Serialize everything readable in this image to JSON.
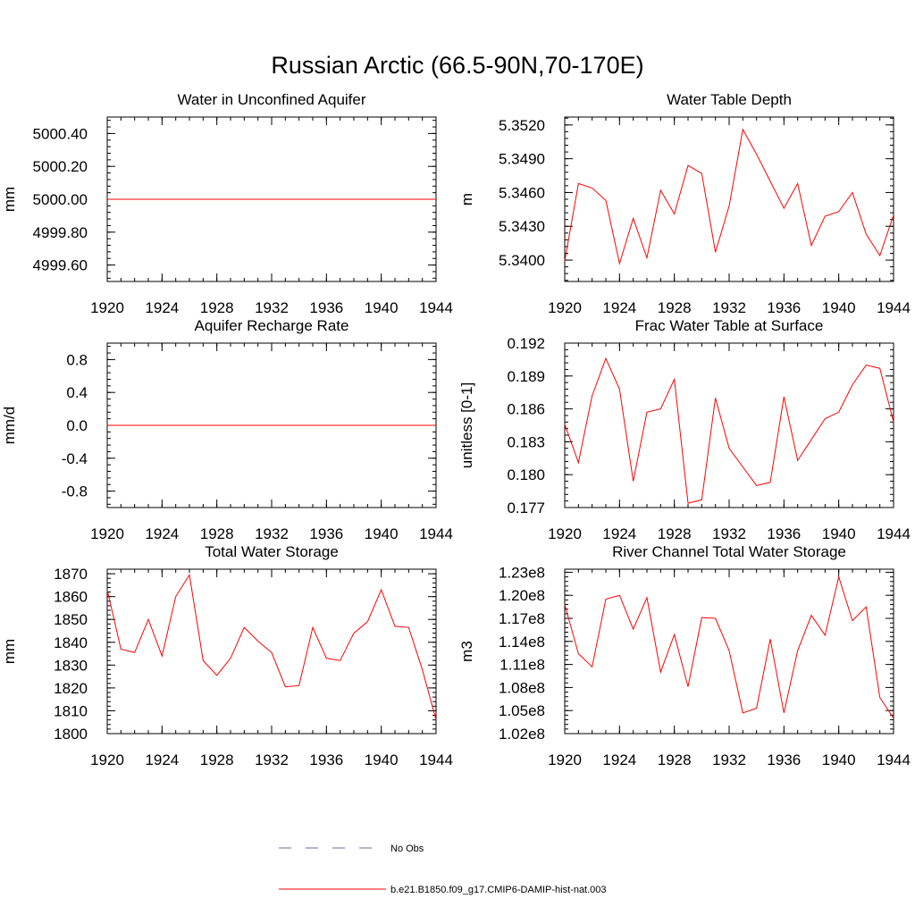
{
  "figure": {
    "title": "Russian Arctic (66.5-90N,70-170E)"
  },
  "legend": {
    "items": [
      {
        "label": "No Obs",
        "color": "#6a6aa0",
        "style": "dashed"
      },
      {
        "label": "b.e21.B1850.f09_g17.CMIP6-DAMIP-hist-nat.003",
        "color": "#ff0000",
        "style": "solid"
      }
    ]
  },
  "chart_data": [
    {
      "type": "line",
      "title": "Water in Unconfined Aquifer",
      "ylabel": "mm",
      "xlim": [
        1920,
        1944
      ],
      "ylim": [
        4999.5,
        5000.5
      ],
      "xticks": [
        "1920",
        "1924",
        "1928",
        "1932",
        "1936",
        "1940",
        "1944"
      ],
      "yticks": [
        4999.6,
        4999.8,
        5000.0,
        5000.2,
        5000.4
      ],
      "ytick_labels": [
        "4999.60",
        "4999.80",
        "5000.00",
        "5000.20",
        "5000.40"
      ],
      "yminor_step": 0.04,
      "series": [
        {
          "color": "#ff0000",
          "x": [
            1920,
            1921,
            1922,
            1923,
            1924,
            1925,
            1926,
            1927,
            1928,
            1929,
            1930,
            1931,
            1932,
            1933,
            1934,
            1935,
            1936,
            1937,
            1938,
            1939,
            1940,
            1941,
            1942,
            1943,
            1944
          ],
          "values": [
            5000,
            5000,
            5000,
            5000,
            5000,
            5000,
            5000,
            5000,
            5000,
            5000,
            5000,
            5000,
            5000,
            5000,
            5000,
            5000,
            5000,
            5000,
            5000,
            5000,
            5000,
            5000,
            5000,
            5000,
            5000
          ]
        }
      ]
    },
    {
      "type": "line",
      "title": "Water Table Depth",
      "ylabel": "m",
      "xlim": [
        1920,
        1944
      ],
      "ylim": [
        5.3381,
        5.3527
      ],
      "xticks": [
        "1920",
        "1924",
        "1928",
        "1932",
        "1936",
        "1940",
        "1944"
      ],
      "yticks": [
        5.34,
        5.343,
        5.346,
        5.349,
        5.352
      ],
      "ytick_labels": [
        "5.3400",
        "5.3430",
        "5.3460",
        "5.3490",
        "5.3520"
      ],
      "yminor_step": 0.0006,
      "series": [
        {
          "color": "#ff0000",
          "x": [
            1920,
            1921,
            1922,
            1923,
            1924,
            1925,
            1926,
            1927,
            1928,
            1929,
            1930,
            1931,
            1932,
            1933,
            1934,
            1935,
            1936,
            1937,
            1938,
            1939,
            1940,
            1941,
            1942,
            1943,
            1944
          ],
          "values": [
            5.3399,
            5.3468,
            5.3464,
            5.3453,
            5.3397,
            5.3437,
            5.3402,
            5.3462,
            5.3441,
            5.3484,
            5.3477,
            5.3407,
            5.3448,
            5.3516,
            5.3494,
            5.347,
            5.3446,
            5.3468,
            5.3413,
            5.3439,
            5.3443,
            5.346,
            5.3423,
            5.3404,
            5.344
          ]
        }
      ]
    },
    {
      "type": "line",
      "title": "Aquifer Recharge Rate",
      "ylabel": "mm/d",
      "xlim": [
        1920,
        1944
      ],
      "ylim": [
        -1.0,
        1.0
      ],
      "xticks": [
        "1920",
        "1924",
        "1928",
        "1932",
        "1936",
        "1940",
        "1944"
      ],
      "yticks": [
        -0.8,
        -0.4,
        0.0,
        0.4,
        0.8
      ],
      "ytick_labels": [
        "-0.8",
        "-0.4",
        "0.0",
        "0.4",
        "0.8"
      ],
      "yminor_step": 0.08,
      "series": [
        {
          "color": "#ff0000",
          "x": [
            1920,
            1921,
            1922,
            1923,
            1924,
            1925,
            1926,
            1927,
            1928,
            1929,
            1930,
            1931,
            1932,
            1933,
            1934,
            1935,
            1936,
            1937,
            1938,
            1939,
            1940,
            1941,
            1942,
            1943,
            1944
          ],
          "values": [
            0,
            0,
            0,
            0,
            0,
            0,
            0,
            0,
            0,
            0,
            0,
            0,
            0,
            0,
            0,
            0,
            0,
            0,
            0,
            0,
            0,
            0,
            0,
            0,
            0
          ]
        }
      ]
    },
    {
      "type": "line",
      "title": "Frac Water Table at Surface",
      "ylabel": "unitless [0-1]",
      "xlim": [
        1920,
        1944
      ],
      "ylim": [
        0.177,
        0.192
      ],
      "xticks": [
        "1920",
        "1924",
        "1928",
        "1932",
        "1936",
        "1940",
        "1944"
      ],
      "yticks": [
        0.177,
        0.18,
        0.183,
        0.186,
        0.189,
        0.192
      ],
      "ytick_labels": [
        "0.177",
        "0.180",
        "0.183",
        "0.186",
        "0.189",
        "0.192"
      ],
      "yminor_step": 0.0006,
      "series": [
        {
          "color": "#ff0000",
          "x": [
            1920,
            1921,
            1922,
            1923,
            1924,
            1925,
            1926,
            1927,
            1928,
            1929,
            1930,
            1931,
            1932,
            1933,
            1934,
            1935,
            1936,
            1937,
            1938,
            1939,
            1940,
            1941,
            1942,
            1943,
            1944
          ],
          "values": [
            0.1846,
            0.1811,
            0.1872,
            0.1906,
            0.1878,
            0.1794,
            0.1857,
            0.186,
            0.1887,
            0.1774,
            0.1777,
            0.187,
            0.1824,
            0.1807,
            0.179,
            0.1793,
            0.1871,
            0.1813,
            0.1832,
            0.1851,
            0.1857,
            0.1882,
            0.19,
            0.1897,
            0.1848
          ]
        }
      ]
    },
    {
      "type": "line",
      "title": "Total Water Storage",
      "ylabel": "mm",
      "xlim": [
        1920,
        1944
      ],
      "ylim": [
        1800,
        1872
      ],
      "xticks": [
        "1920",
        "1924",
        "1928",
        "1932",
        "1936",
        "1940",
        "1944"
      ],
      "yticks": [
        1800,
        1810,
        1820,
        1830,
        1840,
        1850,
        1860,
        1870
      ],
      "ytick_labels": [
        "1800",
        "1810",
        "1820",
        "1830",
        "1840",
        "1850",
        "1860",
        "1870"
      ],
      "yminor_step": 2,
      "series": [
        {
          "color": "#ff0000",
          "x": [
            1920,
            1921,
            1922,
            1923,
            1924,
            1925,
            1926,
            1927,
            1928,
            1929,
            1930,
            1931,
            1932,
            1933,
            1934,
            1935,
            1936,
            1937,
            1938,
            1939,
            1940,
            1941,
            1942,
            1943,
            1944
          ],
          "values": [
            1863,
            1837,
            1835.5,
            1850,
            1834,
            1860,
            1869.5,
            1832,
            1825.5,
            1833,
            1846.5,
            1840.5,
            1835.5,
            1820.5,
            1821,
            1846.5,
            1833,
            1832,
            1844,
            1849,
            1863,
            1847,
            1846.5,
            1828,
            1806
          ]
        }
      ]
    },
    {
      "type": "line",
      "title": "River Channel Total Water Storage",
      "ylabel": "m3",
      "xlim": [
        1920,
        1944
      ],
      "ylim": [
        102000000.0,
        123400000.0
      ],
      "xticks": [
        "1920",
        "1924",
        "1928",
        "1932",
        "1936",
        "1940",
        "1944"
      ],
      "yticks": [
        102000000.0,
        105000000.0,
        108000000.0,
        111000000.0,
        114000000.0,
        117000000.0,
        120000000.0,
        123000000.0
      ],
      "ytick_labels": [
        "1.02e8",
        "1.05e8",
        "1.08e8",
        "1.11e8",
        "1.14e8",
        "1.17e8",
        "1.20e8",
        "1.23e8"
      ],
      "yminor_step": 600000,
      "series": [
        {
          "color": "#ff0000",
          "x": [
            1920,
            1921,
            1922,
            1923,
            1924,
            1925,
            1926,
            1927,
            1928,
            1929,
            1930,
            1931,
            1932,
            1933,
            1934,
            1935,
            1936,
            1937,
            1938,
            1939,
            1940,
            1941,
            1942,
            1943,
            1944
          ],
          "values": [
            118800000.0,
            112400000.0,
            110700000.0,
            119500000.0,
            120000000.0,
            115600000.0,
            119700000.0,
            110000000.0,
            114900000.0,
            108100000.0,
            117100000.0,
            117000000.0,
            112800000.0,
            104700000.0,
            105300000.0,
            114300000.0,
            104700000.0,
            112800000.0,
            117400000.0,
            114800000.0,
            122400000.0,
            116700000.0,
            118500000.0,
            106700000.0,
            104000000.0
          ]
        }
      ]
    }
  ]
}
